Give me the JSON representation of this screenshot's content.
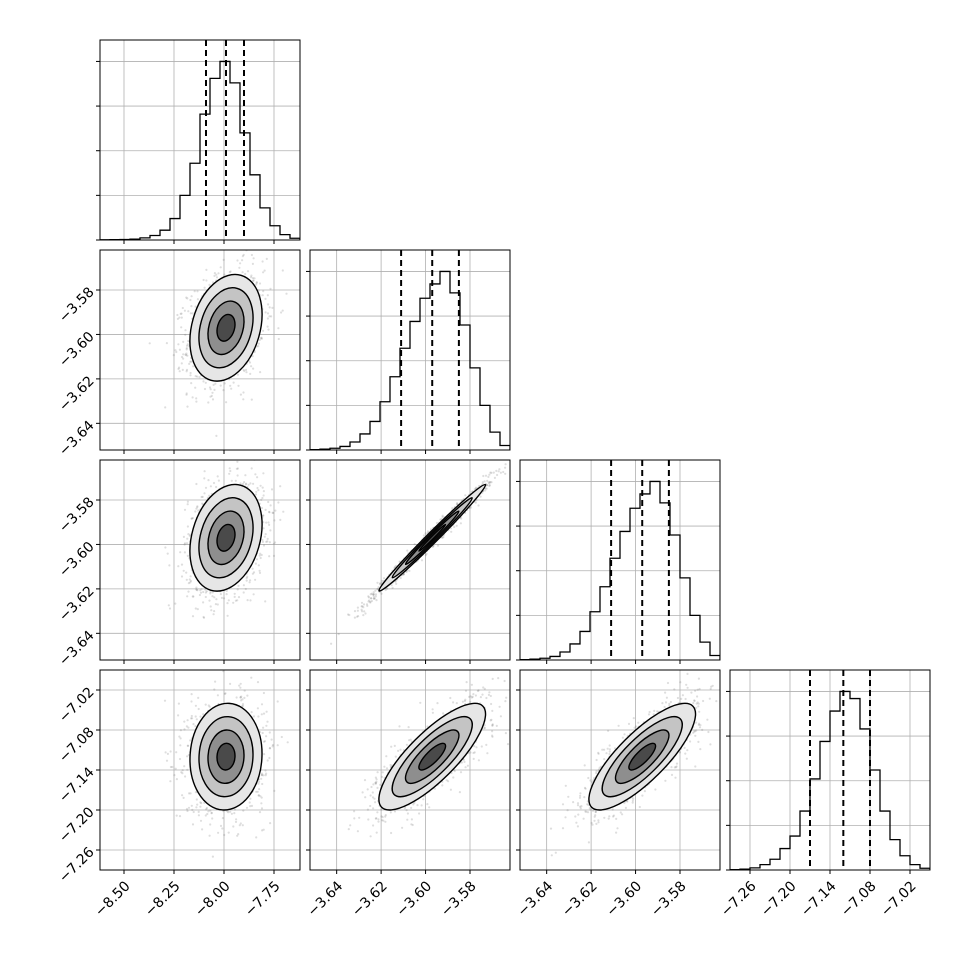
{
  "chart_data": {
    "type": "corner",
    "parameters": [
      {
        "range": [
          -8.62,
          -7.62
        ],
        "ticks": [
          -8.5,
          -8.25,
          -8.0,
          -7.75
        ],
        "tick_labels": [
          "−8.50",
          "−8.25",
          "−8.00",
          "−7.75"
        ],
        "mean": -7.99,
        "std": 0.09,
        "quantiles": [
          -8.09,
          -7.99,
          -7.9
        ]
      },
      {
        "range": [
          -3.652,
          -3.562
        ],
        "ticks": [
          -3.64,
          -3.62,
          -3.6,
          -3.58
        ],
        "tick_labels": [
          "−3.64",
          "−3.62",
          "−3.60",
          "−3.58"
        ],
        "mean": -3.597,
        "std": 0.012,
        "quantiles": [
          -3.611,
          -3.597,
          -3.585
        ]
      },
      {
        "range": [
          -3.652,
          -3.562
        ],
        "ticks": [
          -3.64,
          -3.62,
          -3.6,
          -3.58
        ],
        "tick_labels": [
          "−3.64",
          "−3.62",
          "−3.60",
          "−3.58"
        ],
        "mean": -3.597,
        "std": 0.012,
        "quantiles": [
          -3.611,
          -3.597,
          -3.585
        ]
      },
      {
        "range": [
          -7.29,
          -6.99
        ],
        "ticks": [
          -7.26,
          -7.2,
          -7.14,
          -7.08,
          -7.02
        ],
        "tick_labels": [
          "−7.26",
          "−7.20",
          "−7.14",
          "−7.08",
          "−7.02"
        ],
        "mean": -7.12,
        "std": 0.04,
        "quantiles": [
          -7.17,
          -7.12,
          -7.08
        ]
      }
    ],
    "histograms": [
      {
        "bins": 20,
        "range": [
          -8.62,
          -7.62
        ],
        "counts": [
          1,
          2,
          3,
          5,
          12,
          25,
          55,
          120,
          250,
          430,
          705,
          905,
          1000,
          880,
          600,
          365,
          180,
          80,
          30,
          10
        ]
      },
      {
        "bins": 20,
        "range": [
          -3.652,
          -3.562
        ],
        "counts": [
          2,
          5,
          10,
          20,
          45,
          90,
          160,
          270,
          410,
          570,
          720,
          850,
          930,
          1000,
          880,
          700,
          460,
          250,
          100,
          25
        ]
      },
      {
        "bins": 20,
        "range": [
          -3.652,
          -3.562
        ],
        "counts": [
          2,
          5,
          10,
          20,
          45,
          90,
          160,
          270,
          410,
          570,
          720,
          850,
          930,
          1000,
          880,
          700,
          460,
          250,
          100,
          25
        ]
      },
      {
        "bins": 20,
        "range": [
          -7.29,
          -6.99
        ],
        "counts": [
          2,
          5,
          12,
          30,
          60,
          120,
          190,
          330,
          510,
          720,
          890,
          1000,
          960,
          790,
          560,
          330,
          170,
          80,
          30,
          10
        ]
      }
    ],
    "correlations": {
      "1-0": 0.25,
      "2-0": 0.25,
      "2-1": 0.99,
      "3-0": 0.05,
      "3-1": 0.8,
      "3-2": 0.8
    },
    "contour_levels_sigma": [
      0.5,
      1.0,
      1.5,
      2.0
    ],
    "grid": true
  }
}
